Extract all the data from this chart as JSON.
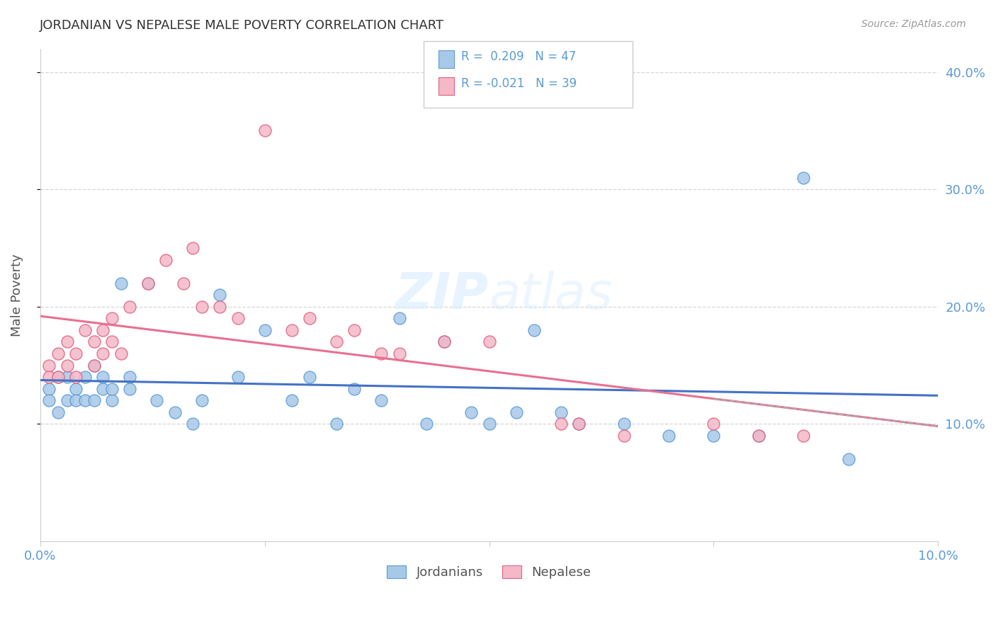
{
  "title": "JORDANIAN VS NEPALESE MALE POVERTY CORRELATION CHART",
  "source": "Source: ZipAtlas.com",
  "ylabel": "Male Poverty",
  "xlim": [
    0.0,
    0.1
  ],
  "ylim": [
    0.0,
    0.42
  ],
  "r_jordanian": 0.209,
  "n_jordanian": 47,
  "r_nepalese": -0.021,
  "n_nepalese": 39,
  "blue_color": "#a8c8e8",
  "pink_color": "#f4b8c8",
  "blue_line_color": "#4472c4",
  "pink_line_color": "#e87090",
  "blue_edge_color": "#5b9bd5",
  "pink_edge_color": "#e06080",
  "jordanian_x": [
    0.001,
    0.001,
    0.002,
    0.002,
    0.003,
    0.003,
    0.004,
    0.004,
    0.005,
    0.005,
    0.006,
    0.006,
    0.007,
    0.007,
    0.008,
    0.008,
    0.009,
    0.01,
    0.01,
    0.012,
    0.013,
    0.015,
    0.017,
    0.018,
    0.02,
    0.022,
    0.025,
    0.028,
    0.03,
    0.033,
    0.035,
    0.038,
    0.04,
    0.043,
    0.045,
    0.048,
    0.05,
    0.053,
    0.055,
    0.058,
    0.06,
    0.065,
    0.07,
    0.075,
    0.08,
    0.085,
    0.09
  ],
  "jordanian_y": [
    0.13,
    0.12,
    0.14,
    0.11,
    0.12,
    0.14,
    0.13,
    0.12,
    0.14,
    0.12,
    0.15,
    0.12,
    0.14,
    0.13,
    0.12,
    0.13,
    0.22,
    0.13,
    0.14,
    0.22,
    0.12,
    0.11,
    0.1,
    0.12,
    0.21,
    0.14,
    0.18,
    0.12,
    0.14,
    0.1,
    0.13,
    0.12,
    0.19,
    0.1,
    0.17,
    0.11,
    0.1,
    0.11,
    0.18,
    0.11,
    0.1,
    0.1,
    0.09,
    0.09,
    0.09,
    0.31,
    0.07
  ],
  "nepalese_x": [
    0.001,
    0.001,
    0.002,
    0.002,
    0.003,
    0.003,
    0.004,
    0.004,
    0.005,
    0.006,
    0.006,
    0.007,
    0.007,
    0.008,
    0.008,
    0.009,
    0.01,
    0.012,
    0.014,
    0.016,
    0.017,
    0.018,
    0.02,
    0.022,
    0.025,
    0.028,
    0.03,
    0.033,
    0.035,
    0.038,
    0.04,
    0.045,
    0.05,
    0.058,
    0.06,
    0.065,
    0.075,
    0.08,
    0.085
  ],
  "nepalese_y": [
    0.15,
    0.14,
    0.16,
    0.14,
    0.17,
    0.15,
    0.16,
    0.14,
    0.18,
    0.17,
    0.15,
    0.18,
    0.16,
    0.19,
    0.17,
    0.16,
    0.2,
    0.22,
    0.24,
    0.22,
    0.25,
    0.2,
    0.2,
    0.19,
    0.35,
    0.18,
    0.19,
    0.17,
    0.18,
    0.16,
    0.16,
    0.17,
    0.17,
    0.1,
    0.1,
    0.09,
    0.1,
    0.09,
    0.09
  ]
}
